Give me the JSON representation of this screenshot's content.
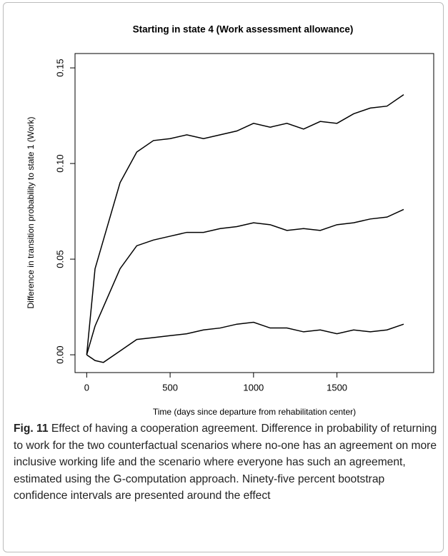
{
  "chart_data": {
    "type": "line",
    "title": "Starting in state 4 (Work assessment allowance)",
    "x_label": "Time (days since departure from rehabilitation center)",
    "y_label": "Difference in transition probability to state 1 (Work)",
    "x": [
      0,
      50,
      100,
      200,
      300,
      400,
      500,
      600,
      700,
      800,
      900,
      1000,
      1100,
      1200,
      1300,
      1400,
      1500,
      1600,
      1700,
      1800,
      1900
    ],
    "series": [
      {
        "color": "#000000",
        "values": [
          0,
          0.045,
          0.06,
          0.09,
          0.106,
          0.112,
          0.113,
          0.115,
          0.113,
          0.115,
          0.117,
          0.121,
          0.119,
          0.121,
          0.118,
          0.122,
          0.121,
          0.126,
          0.129,
          0.13,
          0.136
        ]
      },
      {
        "color": "#000000",
        "values": [
          0,
          0.015,
          0.025,
          0.045,
          0.057,
          0.06,
          0.062,
          0.064,
          0.064,
          0.066,
          0.067,
          0.069,
          0.068,
          0.065,
          0.066,
          0.065,
          0.068,
          0.069,
          0.071,
          0.072,
          0.076
        ]
      },
      {
        "color": "#000000",
        "values": [
          0,
          -0.003,
          -0.004,
          0.002,
          0.008,
          0.009,
          0.01,
          0.011,
          0.013,
          0.014,
          0.016,
          0.017,
          0.014,
          0.014,
          0.012,
          0.013,
          0.011,
          0.013,
          0.012,
          0.013,
          0.016
        ]
      }
    ],
    "xlim": [
      -70,
      2080
    ],
    "ylim": [
      -0.0093,
      0.1575
    ],
    "xticks": [
      0,
      500,
      1000,
      1500
    ],
    "yticks": [
      {
        "value": 0,
        "label": "0.00"
      },
      0.05,
      {
        "value": 0.1,
        "label": "0.10"
      },
      0.15
    ]
  },
  "caption": {
    "label": "Fig. 11",
    "text": "Effect of having a cooperation agreement. Difference in probability of returning to work for the two counterfactual scenarios where no-one has an agreement on more inclusive working life and the scenario where everyone has such an agreement, estimated using the G-computation approach. Ninety-five percent bootstrap confidence intervals are presented around the effect"
  }
}
